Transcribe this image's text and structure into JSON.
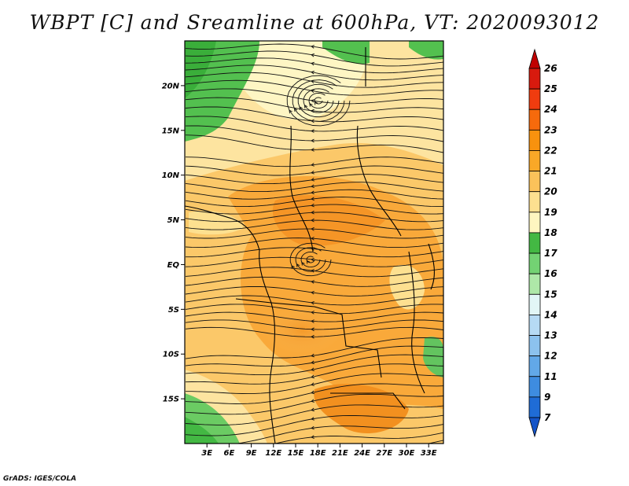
{
  "title": "WBPT [C] and Sreamline at 600hPa, VT: 2020093012",
  "credit": "GrADS: IGES/COLA",
  "map": {
    "variable": "Wet-bulb potential temperature",
    "units": "C",
    "level": "600hPa",
    "valid_time": "2020093012",
    "lon_range": [
      0,
      35
    ],
    "lat_range": [
      -20,
      25
    ],
    "x_ticks": [
      {
        "lon": 3,
        "label": "3E"
      },
      {
        "lon": 6,
        "label": "6E"
      },
      {
        "lon": 9,
        "label": "9E"
      },
      {
        "lon": 12,
        "label": "12E"
      },
      {
        "lon": 15,
        "label": "15E"
      },
      {
        "lon": 18,
        "label": "18E"
      },
      {
        "lon": 21,
        "label": "21E"
      },
      {
        "lon": 24,
        "label": "24E"
      },
      {
        "lon": 27,
        "label": "27E"
      },
      {
        "lon": 30,
        "label": "30E"
      },
      {
        "lon": 33,
        "label": "33E"
      }
    ],
    "y_ticks": [
      {
        "lat": 20,
        "label": "20N"
      },
      {
        "lat": 15,
        "label": "15N"
      },
      {
        "lat": 10,
        "label": "10N"
      },
      {
        "lat": 5,
        "label": "5N"
      },
      {
        "lat": 0,
        "label": "EQ"
      },
      {
        "lat": -5,
        "label": "5S"
      },
      {
        "lat": -10,
        "label": "10S"
      },
      {
        "lat": -15,
        "label": "15S"
      }
    ]
  },
  "colorbar": {
    "labels": [
      "26",
      "25",
      "24",
      "23",
      "22",
      "21",
      "20",
      "19",
      "18",
      "17",
      "16",
      "15",
      "14",
      "13",
      "12",
      "11",
      "9",
      "7"
    ],
    "colors": [
      "#c00000",
      "#d81a0e",
      "#f03c0f",
      "#f66a0c",
      "#f8920e",
      "#f9a827",
      "#fbc25a",
      "#fde090",
      "#fef6c0",
      "#43b843",
      "#73d273",
      "#aee8a8",
      "#e2f6f6",
      "#b6daf4",
      "#8cc2ee",
      "#62a8e8",
      "#3e8ce0",
      "#1f6cd6",
      "#1454c8"
    ]
  }
}
